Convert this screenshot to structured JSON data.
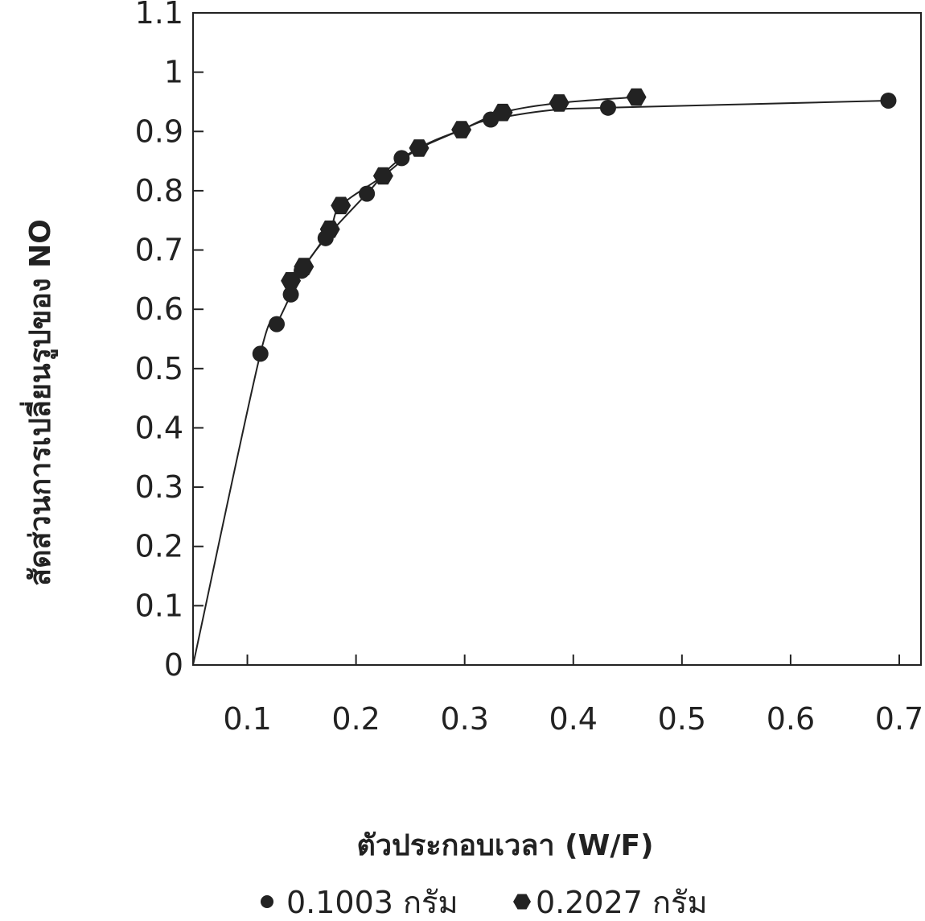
{
  "chart_data": {
    "type": "scatter",
    "xlabel": "ตัวประกอบเวลา (W/F)",
    "ylabel": "สัดส่วนการเปลี่ยนรูปของ NO",
    "xlim": [
      0.05,
      0.72
    ],
    "ylim": [
      0,
      1.1
    ],
    "x_ticks": [
      0.1,
      0.2,
      0.3,
      0.4,
      0.5,
      0.6,
      0.7
    ],
    "x_tick_labels": [
      "0.1",
      "0.2",
      "0.3",
      "0.4",
      "0.5",
      "0.6",
      "0.7"
    ],
    "y_ticks": [
      0,
      0.1,
      0.2,
      0.3,
      0.4,
      0.5,
      0.6,
      0.7,
      0.8,
      0.9,
      1,
      1.1
    ],
    "y_tick_labels": [
      "0",
      "0.1",
      "0.2",
      "0.3",
      "0.4",
      "0.5",
      "0.6",
      "0.7",
      "0.8",
      "0.9",
      "1",
      "1.1"
    ],
    "grid": false,
    "legend_position": "bottom",
    "series": [
      {
        "name": "0.1003 กรัม",
        "marker": "circle",
        "color": "#222222",
        "points": [
          [
            0.112,
            0.525
          ],
          [
            0.127,
            0.575
          ],
          [
            0.14,
            0.625
          ],
          [
            0.15,
            0.665
          ],
          [
            0.172,
            0.72
          ],
          [
            0.21,
            0.795
          ],
          [
            0.242,
            0.855
          ],
          [
            0.324,
            0.92
          ],
          [
            0.432,
            0.94
          ],
          [
            0.69,
            0.952
          ]
        ],
        "curve": [
          [
            0.05,
            0
          ],
          [
            0.112,
            0.525
          ],
          [
            0.127,
            0.575
          ],
          [
            0.14,
            0.625
          ],
          [
            0.15,
            0.665
          ],
          [
            0.172,
            0.72
          ],
          [
            0.21,
            0.795
          ],
          [
            0.242,
            0.855
          ],
          [
            0.3,
            0.905
          ],
          [
            0.324,
            0.92
          ],
          [
            0.38,
            0.936
          ],
          [
            0.432,
            0.94
          ],
          [
            0.69,
            0.952
          ]
        ]
      },
      {
        "name": "0.2027 กรัม",
        "marker": "hexagon",
        "color": "#222222",
        "points": [
          [
            0.14,
            0.648
          ],
          [
            0.152,
            0.672
          ],
          [
            0.176,
            0.735
          ],
          [
            0.186,
            0.775
          ],
          [
            0.225,
            0.825
          ],
          [
            0.258,
            0.872
          ],
          [
            0.297,
            0.903
          ],
          [
            0.335,
            0.932
          ],
          [
            0.387,
            0.948
          ],
          [
            0.458,
            0.958
          ]
        ],
        "curve": [
          [
            0.14,
            0.648
          ],
          [
            0.152,
            0.672
          ],
          [
            0.176,
            0.735
          ],
          [
            0.186,
            0.775
          ],
          [
            0.225,
            0.825
          ],
          [
            0.258,
            0.872
          ],
          [
            0.297,
            0.903
          ],
          [
            0.335,
            0.932
          ],
          [
            0.387,
            0.948
          ],
          [
            0.458,
            0.958
          ]
        ]
      }
    ]
  }
}
